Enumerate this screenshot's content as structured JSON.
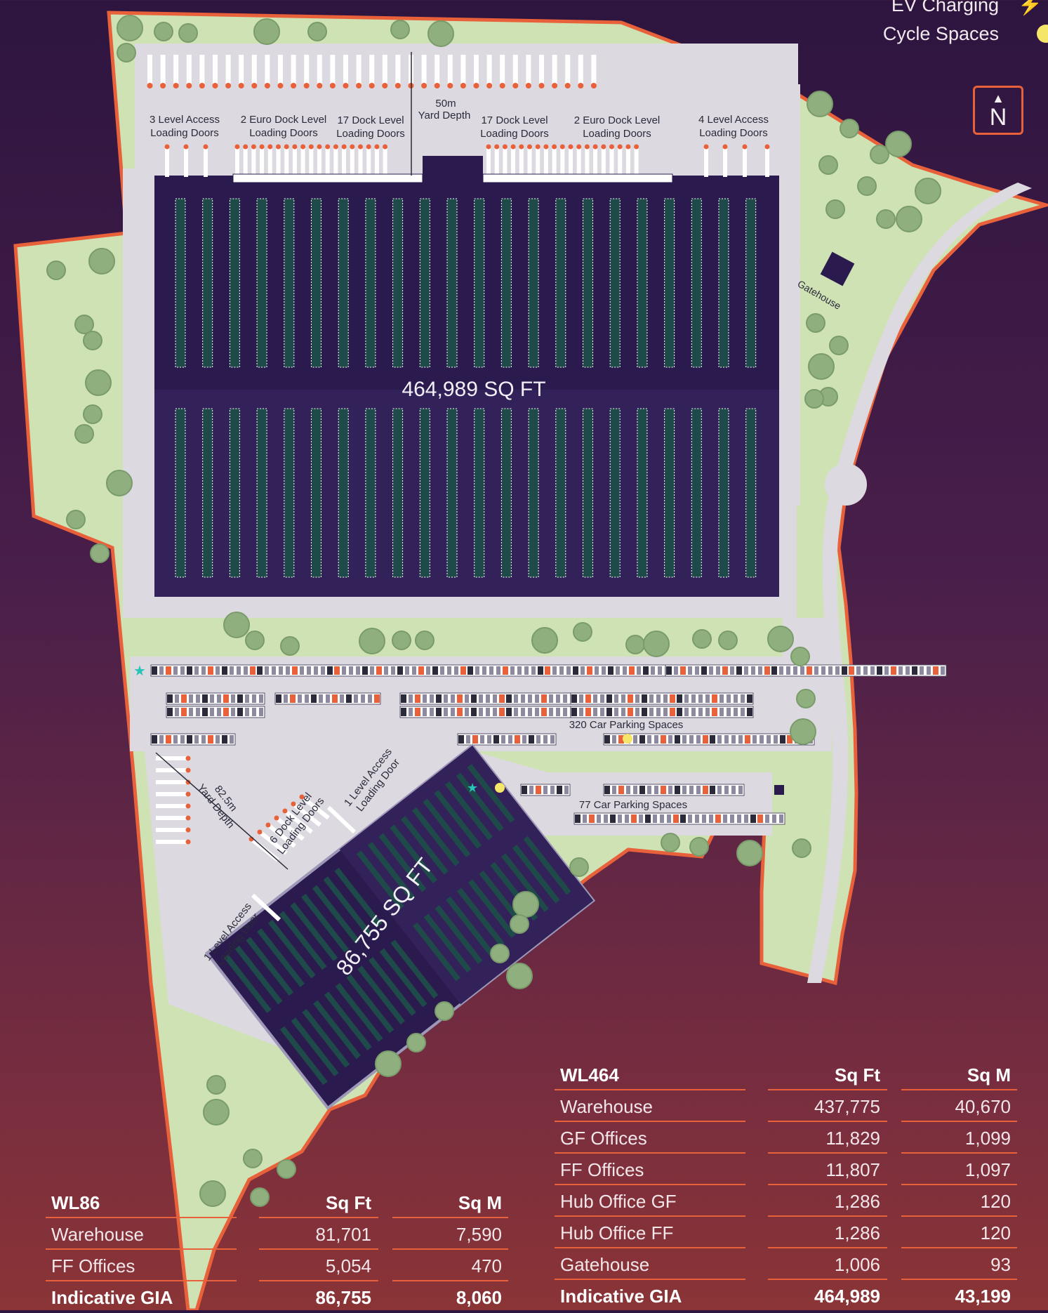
{
  "legend": {
    "ev_charging": "EV Charging",
    "cycle_spaces": "Cycle Spaces",
    "colors": {
      "ev": "#ffffff",
      "cycle": "#f5e66a"
    }
  },
  "north": {
    "label": "N"
  },
  "colors": {
    "background_top": "#2d1540",
    "background_bottom": "#8a3436",
    "boundary": "#e8613a",
    "landscape": "#cfe2b4",
    "yard": "#dcd9e0",
    "warehouse": "#2a1a4e",
    "tree": "#8fb07e"
  },
  "map": {
    "labels": {
      "main_area": "464,989 SQ FT",
      "small_area": "86,755 SQ FT",
      "gatehouse": "Gatehouse",
      "yard_50": [
        "50m",
        "Yard Depth"
      ],
      "yard_82": [
        "82.5m",
        "Yard Depth"
      ],
      "north_doors": [
        [
          "3 Level Access",
          "Loading Doors"
        ],
        [
          "2 Euro Dock Level",
          "Loading Doors"
        ],
        [
          "17 Dock Level",
          "Loading Doors"
        ],
        [
          "17 Dock Level",
          "Loading Doors"
        ],
        [
          "2 Euro Dock Level",
          "Loading Doors"
        ],
        [
          "4 Level Access",
          "Loading Doors"
        ]
      ],
      "parking_320": "320 Car Parking Spaces",
      "parking_77": "77 Car Parking Spaces",
      "wl86_doors": [
        [
          "1 Level Access",
          "Loading Door"
        ],
        [
          "6 Dock Level",
          "Loading Doors"
        ],
        [
          "1 Level Access",
          "Loading Door"
        ]
      ]
    }
  },
  "tables": {
    "wl464": {
      "title": "WL464",
      "col_sqft": "Sq Ft",
      "col_sqm": "Sq M",
      "rows": [
        {
          "name": "Warehouse",
          "sqft": "437,775",
          "sqm": "40,670"
        },
        {
          "name": "GF Offices",
          "sqft": "11,829",
          "sqm": "1,099"
        },
        {
          "name": "FF Offices",
          "sqft": "11,807",
          "sqm": "1,097"
        },
        {
          "name": "Hub Office GF",
          "sqft": "1,286",
          "sqm": "120"
        },
        {
          "name": "Hub Office FF",
          "sqft": "1,286",
          "sqm": "120"
        },
        {
          "name": "Gatehouse",
          "sqft": "1,006",
          "sqm": "93"
        }
      ],
      "total": {
        "name": "Indicative GIA",
        "sqft": "464,989",
        "sqm": "43,199"
      }
    },
    "wl86": {
      "title": "WL86",
      "col_sqft": "Sq Ft",
      "col_sqm": "Sq M",
      "rows": [
        {
          "name": "Warehouse",
          "sqft": "81,701",
          "sqm": "7,590"
        },
        {
          "name": "FF Offices",
          "sqft": "5,054",
          "sqm": "470"
        }
      ],
      "total": {
        "name": "Indicative GIA",
        "sqft": "86,755",
        "sqm": "8,060"
      }
    }
  }
}
